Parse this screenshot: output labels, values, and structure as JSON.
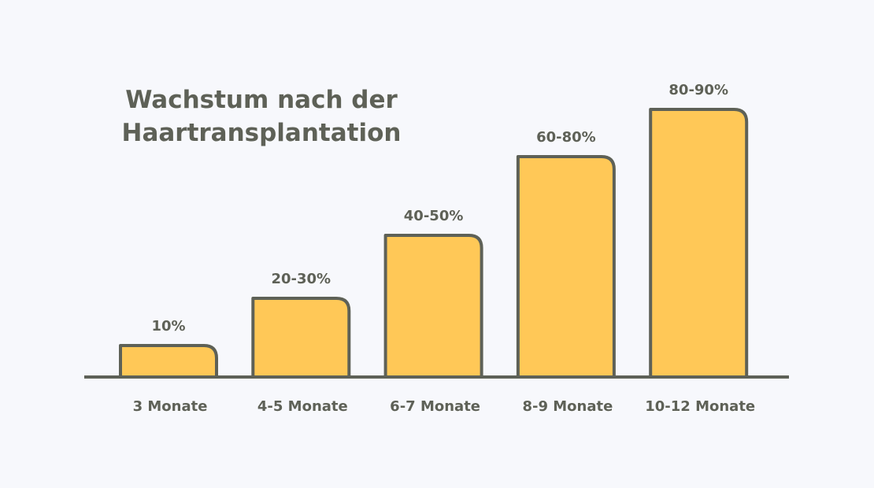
{
  "chart_data": {
    "type": "bar",
    "title_lines": [
      "Wachstum nach der",
      "Haartransplantation"
    ],
    "categories": [
      "3 Monate",
      "4-5 Monate",
      "6-7 Monate",
      "8-9 Monate",
      "10-12 Monate"
    ],
    "values": [
      10,
      25,
      45,
      70,
      85
    ],
    "ranges": [
      [
        10,
        10
      ],
      [
        20,
        30
      ],
      [
        40,
        50
      ],
      [
        60,
        80
      ],
      [
        80,
        90
      ]
    ],
    "data_labels": [
      "10%",
      "20-30%",
      "40-50%",
      "60-80%",
      "80-90%"
    ],
    "xlabel": "",
    "ylabel": "",
    "ylim": [
      0,
      100
    ],
    "grid": false,
    "colors": {
      "bar": "#ffc857",
      "outline": "#5e6157",
      "background": "#f7f8fc"
    }
  }
}
